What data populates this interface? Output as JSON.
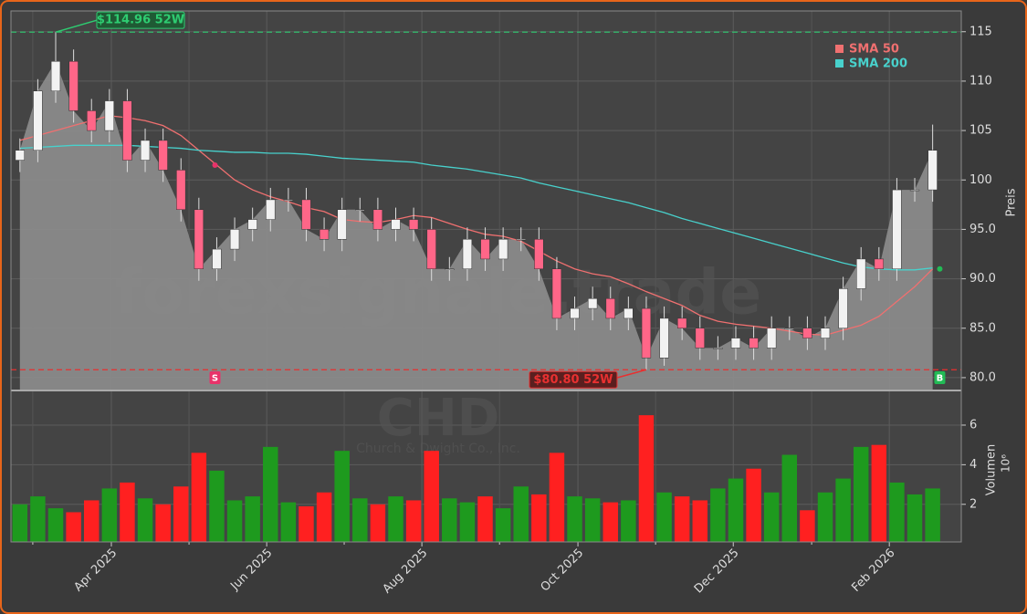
{
  "chart_data": {
    "type": "candlestick",
    "open": [
      102,
      103,
      109,
      112,
      107,
      105,
      108,
      102,
      104,
      101,
      97,
      91,
      93,
      95,
      96,
      98,
      98,
      95,
      94,
      97,
      97,
      95,
      96,
      95,
      91,
      91,
      94,
      92,
      94,
      94,
      91,
      86,
      87,
      88,
      86,
      87,
      82,
      86,
      85,
      83,
      83,
      84,
      83,
      85,
      85,
      84,
      85,
      89,
      92,
      91,
      99,
      99
    ],
    "high": [
      104.2,
      110.2,
      114.96,
      113.2,
      108.2,
      109.2,
      109.2,
      105.2,
      105.2,
      102.2,
      98.2,
      94.2,
      96.2,
      97.2,
      99.2,
      99.2,
      99.2,
      96.2,
      98.2,
      98.2,
      98.2,
      97.2,
      97.2,
      96.2,
      92.2,
      95.2,
      95.2,
      95.2,
      95.2,
      95.2,
      92.2,
      88.2,
      89.2,
      89.2,
      88.2,
      88.2,
      87.2,
      87.2,
      86.2,
      84.2,
      85.2,
      85.2,
      86.2,
      86.2,
      86.2,
      86.2,
      90.2,
      93.2,
      93.2,
      100.2,
      100.2,
      105.6
    ],
    "low": [
      100.8,
      101.8,
      107.8,
      105.8,
      103.8,
      103.8,
      100.8,
      100.8,
      99.8,
      95.8,
      89.8,
      89.8,
      91.8,
      93.8,
      94.8,
      96.8,
      93.8,
      92.8,
      92.8,
      95.8,
      93.8,
      93.8,
      93.8,
      89.8,
      89.8,
      89.8,
      90.8,
      90.8,
      92.8,
      89.8,
      84.8,
      84.8,
      85.8,
      84.8,
      84.8,
      80.8,
      81.2,
      83.8,
      81.8,
      81.8,
      81.8,
      81.8,
      81.8,
      83.8,
      82.8,
      82.8,
      83.8,
      87.8,
      89.8,
      89.8,
      97.8,
      97.8
    ],
    "close": [
      103,
      109,
      112,
      107,
      105,
      108,
      102,
      104,
      101,
      97,
      91,
      93,
      95,
      96,
      98,
      98,
      95,
      94,
      97,
      97,
      95,
      96,
      95,
      91,
      91,
      94,
      92,
      94,
      94,
      91,
      86,
      87,
      88,
      86,
      87,
      82,
      86,
      85,
      83,
      83,
      84,
      83,
      85,
      85,
      84,
      85,
      89,
      92,
      91,
      99,
      99,
      103
    ],
    "volume": [
      2.0,
      2.4,
      1.8,
      1.6,
      2.2,
      2.8,
      3.1,
      2.3,
      2.0,
      2.9,
      4.6,
      3.7,
      2.2,
      2.4,
      4.9,
      2.1,
      1.9,
      2.6,
      4.7,
      2.3,
      2.0,
      2.4,
      2.2,
      4.7,
      2.3,
      2.1,
      2.4,
      1.8,
      2.9,
      2.5,
      4.6,
      2.4,
      2.3,
      2.1,
      2.2,
      6.5,
      2.6,
      2.4,
      2.2,
      2.8,
      3.3,
      3.8,
      2.6,
      4.5,
      1.7,
      2.6,
      3.3,
      4.9,
      5.0,
      3.1,
      2.5,
      2.8
    ],
    "series": [
      {
        "name": "SMA 50",
        "color": "#f07070",
        "values": [
          104,
          104.5,
          105,
          105.5,
          106,
          106.5,
          106.3,
          106,
          105.5,
          104.5,
          103,
          101.5,
          100,
          99,
          98.3,
          97.8,
          97.2,
          96.8,
          96,
          95.8,
          95.7,
          96,
          96.4,
          96.2,
          95.6,
          95,
          94.5,
          94.3,
          93.8,
          92.8,
          91.8,
          91,
          90.5,
          90.2,
          89.5,
          88.7,
          88,
          87.3,
          86.3,
          85.7,
          85.4,
          85.2,
          85,
          84.7,
          84.4,
          84.3,
          84.8,
          85.3,
          86.2,
          87.7,
          89.2,
          91
        ]
      },
      {
        "name": "SMA 200",
        "color": "#48d1cc",
        "values": [
          103.2,
          103.3,
          103.4,
          103.5,
          103.5,
          103.5,
          103.5,
          103.4,
          103.3,
          103.2,
          103,
          102.9,
          102.8,
          102.8,
          102.7,
          102.7,
          102.6,
          102.4,
          102.2,
          102.1,
          102,
          101.9,
          101.8,
          101.5,
          101.3,
          101.1,
          100.8,
          100.5,
          100.2,
          99.7,
          99.3,
          98.9,
          98.5,
          98.1,
          97.7,
          97.2,
          96.7,
          96.1,
          95.6,
          95.1,
          94.6,
          94.1,
          93.6,
          93.1,
          92.6,
          92.1,
          91.6,
          91.2,
          91,
          90.9,
          90.9,
          91.1
        ]
      }
    ],
    "up_color": "#f2f2f2",
    "down_color": "#ff6688",
    "area_color": "#8a8a8a",
    "volume_up_color": "#1e9a1e",
    "volume_down_color": "#ff2020",
    "xlim": [
      0,
      53.1
    ],
    "xticks": [
      {
        "value": 5.61,
        "label": "Apr 2025"
      },
      {
        "value": 14.29,
        "label": "Jun 2025"
      },
      {
        "value": 22.96,
        "label": "Aug 2025"
      },
      {
        "value": 31.68,
        "label": "Oct 2025"
      },
      {
        "value": 40.36,
        "label": "Dec 2025"
      },
      {
        "value": 49.08,
        "label": "Feb 2026"
      }
    ],
    "xminorticks": [
      1.22,
      9.95,
      18.62,
      27.3,
      36.02,
      44.74
    ],
    "ylim": [
      78.7,
      117.1
    ],
    "yticks": [
      {
        "value": 80,
        "label": "80.0"
      },
      {
        "value": 85,
        "label": "85.0"
      },
      {
        "value": 90,
        "label": "90.0"
      },
      {
        "value": 95,
        "label": "95.0"
      },
      {
        "value": 100,
        "label": "100"
      },
      {
        "value": 105,
        "label": "105"
      },
      {
        "value": 110,
        "label": "110"
      },
      {
        "value": 115,
        "label": "115"
      }
    ],
    "ylabel": "Preis",
    "volume_ylim": [
      0.1,
      7.75
    ],
    "volume_yticks": [
      2,
      4,
      6
    ],
    "volume_label": "Volumen",
    "volume_unit": "10⁶",
    "grid": true,
    "annotations": [
      {
        "value": 114.96,
        "label": "$114.96 52W",
        "color": "#2ecc71"
      },
      {
        "value": 80.8,
        "label": "$80.80 52W",
        "color": "#e83030"
      }
    ],
    "signals": [
      {
        "x": 11.4,
        "label": "S",
        "color": "#e8336a"
      },
      {
        "x": 51.9,
        "label": "B",
        "color": "#22bb55"
      }
    ],
    "watermark": "forexsignale.trade",
    "symbol": "CHD",
    "company": "Church & Dwight Co., Inc."
  }
}
